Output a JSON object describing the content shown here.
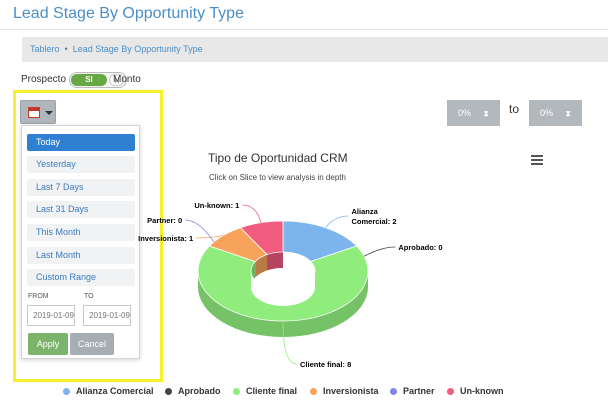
{
  "page": {
    "title": "Lead Stage By Opportunity Type"
  },
  "breadcrumb": {
    "home": "Tablero",
    "separator": "•",
    "current": "Lead Stage By Opportunity Type"
  },
  "toggle": {
    "left_label": "Prospecto",
    "state_label": "SI",
    "right_label": "Monto",
    "on": true
  },
  "date_picker": {
    "ranges": [
      "Today",
      "Yesterday",
      "Last 7 Days",
      "Last 31 Days",
      "This Month",
      "Last Month",
      "Custom Range"
    ],
    "active_range": "Today",
    "from_label": "FROM",
    "to_label": "TO",
    "from_value": "2019-01-09",
    "to_value": "2019-01-09",
    "apply_label": "Apply",
    "cancel_label": "Cancel"
  },
  "percent_filter": {
    "from_value": "0%",
    "to_label": "to",
    "to_value": "0%"
  },
  "chart_header": {
    "title": "Tipo de Oportunidad CRM",
    "subtitle": "Click on Slice to view analysis in depth"
  },
  "chart_data": {
    "type": "pie",
    "title": "Tipo de Oportunidad CRM",
    "subtitle": "Click on Slice to view analysis in depth",
    "donut": true,
    "three_d": true,
    "slices": [
      {
        "name": "Alianza Comercial",
        "value": 2,
        "color": "#7cb5ec",
        "label": "Alianza Comercial: 2"
      },
      {
        "name": "Aprobado",
        "value": 0,
        "color": "#434348",
        "label": "Aprobado: 0"
      },
      {
        "name": "Cliente final",
        "value": 8,
        "color": "#90ed7d",
        "label": "Cliente final: 8"
      },
      {
        "name": "Inversionista",
        "value": 1,
        "color": "#f7a35c",
        "label": "Inversionista: 1"
      },
      {
        "name": "Partner",
        "value": 0,
        "color": "#8085e9",
        "label": "Partner: 0"
      },
      {
        "name": "Un-known",
        "value": 1,
        "color": "#f15c80",
        "label": "Un-known: 1"
      }
    ],
    "legend_placement": "bottom"
  }
}
